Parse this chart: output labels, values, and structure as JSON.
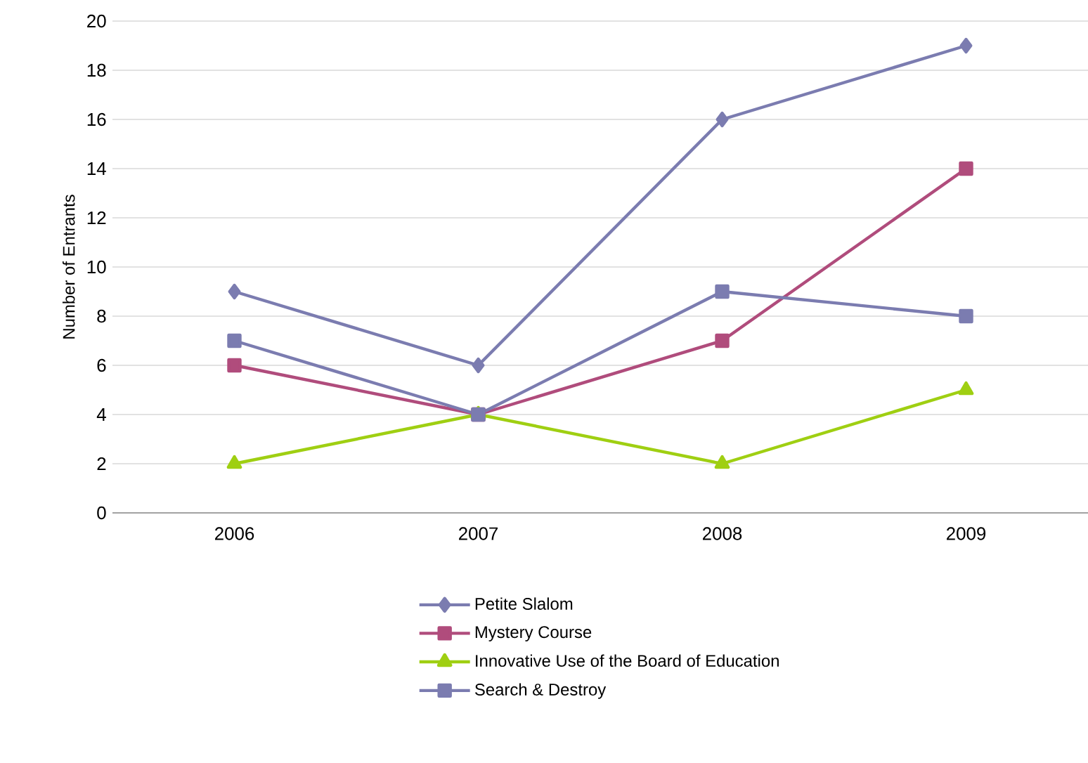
{
  "chart_data": {
    "type": "line",
    "ylabel": "Number of Entrants",
    "categories": [
      "2006",
      "2007",
      "2008",
      "2009"
    ],
    "series": [
      {
        "name": "Petite Slalom",
        "color": "#7b7cb0",
        "marker": "diamond",
        "values": [
          9,
          6,
          16,
          19
        ]
      },
      {
        "name": "Mystery Course",
        "color": "#b04c7c",
        "marker": "square",
        "values": [
          6,
          4,
          7,
          14
        ]
      },
      {
        "name": "Innovative Use of the Board of Education",
        "color": "#9fcf12",
        "marker": "triangle",
        "values": [
          2,
          4,
          2,
          5
        ]
      },
      {
        "name": "Search & Destroy",
        "color": "#7b7cb0",
        "marker": "square",
        "values": [
          7,
          4,
          9,
          8
        ]
      }
    ],
    "ylim": [
      0,
      20
    ],
    "yticks": [
      0,
      2,
      4,
      6,
      8,
      10,
      12,
      14,
      16,
      18,
      20
    ],
    "grid": "y",
    "legend": "bottom",
    "line_style": "solid"
  }
}
